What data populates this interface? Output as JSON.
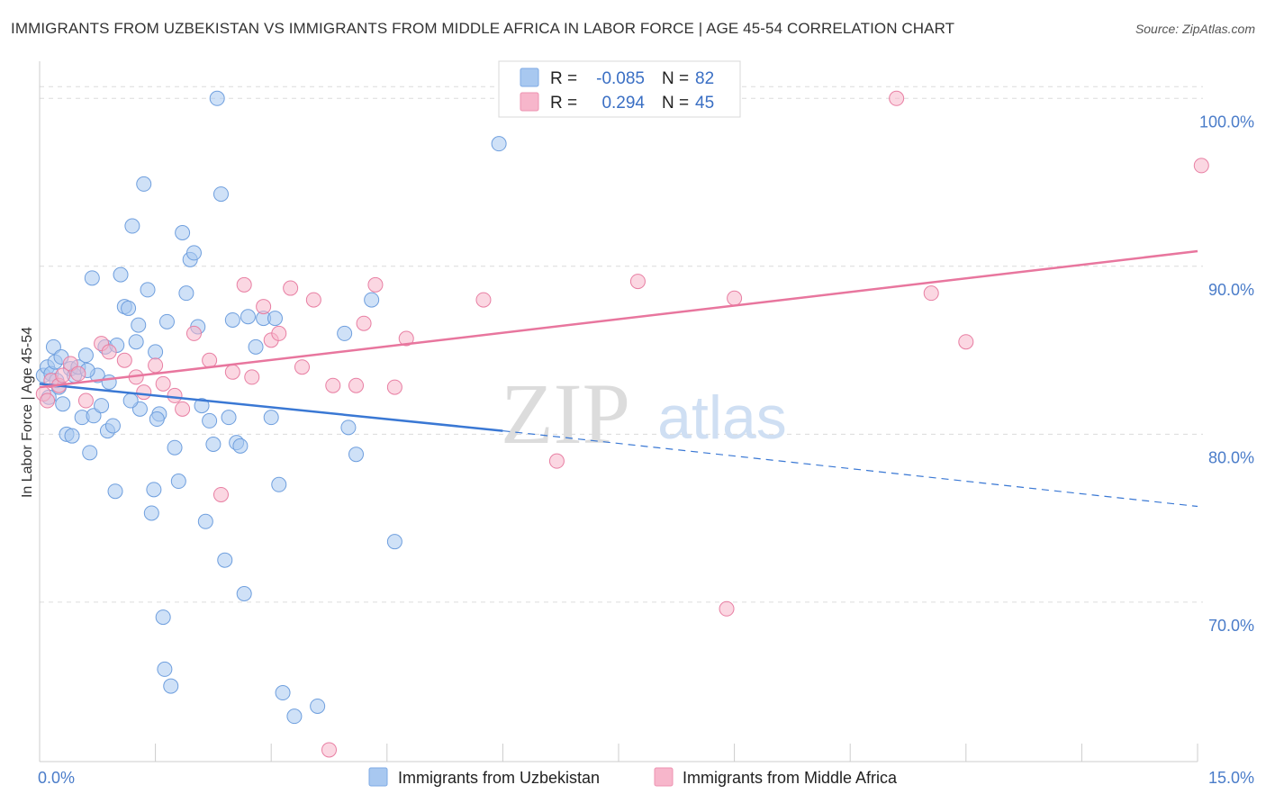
{
  "title": "IMMIGRANTS FROM UZBEKISTAN VS IMMIGRANTS FROM MIDDLE AFRICA IN LABOR FORCE | AGE 45-54 CORRELATION CHART",
  "source": "Source: ZipAtlas.com",
  "watermark": {
    "zip": "ZIP",
    "atlas": "atlas"
  },
  "legend": {
    "rows": [
      {
        "r_label": "R =",
        "r_value": "-0.085",
        "n_label": "N =",
        "n_value": "82",
        "color": "#a8c8f0"
      },
      {
        "r_label": "R =",
        "r_value": "0.294",
        "n_label": "N =",
        "n_value": "45",
        "color": "#f7b6cb"
      }
    ]
  },
  "chart_data": {
    "type": "scatter",
    "title": "IMMIGRANTS FROM UZBEKISTAN VS IMMIGRANTS FROM MIDDLE AFRICA IN LABOR FORCE | AGE 45-54 CORRELATION CHART",
    "xlabel": "",
    "ylabel": "In Labor Force | Age 45-54",
    "xlim": [
      0,
      15
    ],
    "ylim": [
      60.5,
      102
    ],
    "x_tick_labels": [
      "0.0%",
      "15.0%"
    ],
    "y_ticks": [
      70,
      80,
      90,
      100
    ],
    "y_tick_labels": [
      "70.0%",
      "80.0%",
      "90.0%",
      "100.0%"
    ],
    "grid": true,
    "legend_position": "top-center",
    "series": [
      {
        "name": "Immigrants from Uzbekistan",
        "color": "#a8c8f0",
        "stroke": "#6f9fde",
        "points": [
          [
            0.05,
            83.5
          ],
          [
            0.1,
            84.0
          ],
          [
            0.12,
            82.2
          ],
          [
            0.15,
            83.6
          ],
          [
            0.18,
            85.2
          ],
          [
            0.2,
            84.3
          ],
          [
            0.25,
            82.8
          ],
          [
            0.28,
            84.6
          ],
          [
            0.3,
            81.8
          ],
          [
            0.35,
            80.0
          ],
          [
            0.4,
            83.9
          ],
          [
            0.45,
            83.5
          ],
          [
            0.5,
            84.0
          ],
          [
            0.55,
            81.0
          ],
          [
            0.6,
            84.7
          ],
          [
            0.65,
            78.9
          ],
          [
            0.68,
            89.3
          ],
          [
            0.7,
            81.1
          ],
          [
            0.75,
            83.5
          ],
          [
            0.8,
            81.7
          ],
          [
            0.85,
            85.2
          ],
          [
            0.88,
            80.2
          ],
          [
            0.9,
            83.1
          ],
          [
            0.95,
            80.5
          ],
          [
            0.98,
            76.6
          ],
          [
            1.0,
            85.3
          ],
          [
            1.05,
            89.5
          ],
          [
            1.1,
            87.6
          ],
          [
            1.15,
            87.5
          ],
          [
            1.2,
            92.4
          ],
          [
            1.25,
            85.5
          ],
          [
            1.28,
            86.5
          ],
          [
            1.3,
            81.5
          ],
          [
            1.35,
            94.9
          ],
          [
            1.4,
            88.6
          ],
          [
            1.45,
            75.3
          ],
          [
            1.48,
            76.7
          ],
          [
            1.5,
            84.9
          ],
          [
            1.55,
            81.2
          ],
          [
            1.6,
            69.1
          ],
          [
            1.62,
            66.0
          ],
          [
            1.65,
            86.7
          ],
          [
            1.7,
            65.0
          ],
          [
            1.75,
            79.2
          ],
          [
            1.8,
            77.2
          ],
          [
            1.85,
            92.0
          ],
          [
            1.9,
            88.4
          ],
          [
            1.95,
            90.4
          ],
          [
            2.0,
            90.8
          ],
          [
            2.05,
            86.4
          ],
          [
            2.1,
            81.7
          ],
          [
            2.15,
            74.8
          ],
          [
            2.2,
            80.8
          ],
          [
            2.3,
            100.0
          ],
          [
            2.35,
            94.3
          ],
          [
            2.4,
            72.5
          ],
          [
            2.45,
            81.0
          ],
          [
            2.5,
            86.8
          ],
          [
            2.55,
            79.5
          ],
          [
            2.6,
            79.3
          ],
          [
            2.65,
            70.5
          ],
          [
            2.7,
            87.0
          ],
          [
            2.8,
            85.2
          ],
          [
            2.9,
            86.9
          ],
          [
            3.05,
            86.9
          ],
          [
            3.1,
            77.0
          ],
          [
            3.15,
            64.6
          ],
          [
            3.3,
            63.2
          ],
          [
            3.6,
            63.8
          ],
          [
            3.0,
            81.0
          ],
          [
            4.0,
            80.4
          ],
          [
            4.1,
            78.8
          ],
          [
            4.3,
            88.0
          ],
          [
            4.6,
            73.6
          ],
          [
            5.95,
            97.3
          ],
          [
            3.95,
            86.0
          ],
          [
            1.18,
            82.0
          ],
          [
            0.22,
            83.2
          ],
          [
            0.42,
            79.9
          ],
          [
            1.52,
            80.9
          ],
          [
            0.62,
            83.8
          ],
          [
            2.25,
            79.4
          ]
        ]
      },
      {
        "name": "Immigrants from Middle Africa",
        "color": "#f7b6cb",
        "stroke": "#e87fa3",
        "points": [
          [
            0.05,
            82.4
          ],
          [
            0.1,
            82.0
          ],
          [
            0.15,
            83.2
          ],
          [
            0.25,
            82.9
          ],
          [
            0.3,
            83.5
          ],
          [
            0.4,
            84.2
          ],
          [
            0.5,
            83.6
          ],
          [
            0.6,
            82.0
          ],
          [
            0.8,
            85.4
          ],
          [
            0.9,
            84.9
          ],
          [
            1.1,
            84.4
          ],
          [
            1.25,
            83.4
          ],
          [
            1.35,
            82.5
          ],
          [
            1.5,
            84.1
          ],
          [
            1.6,
            83.0
          ],
          [
            1.75,
            82.3
          ],
          [
            1.85,
            81.5
          ],
          [
            2.0,
            86.0
          ],
          [
            2.2,
            84.4
          ],
          [
            2.35,
            76.4
          ],
          [
            2.5,
            83.7
          ],
          [
            2.65,
            88.9
          ],
          [
            2.75,
            83.4
          ],
          [
            2.9,
            87.6
          ],
          [
            3.0,
            85.6
          ],
          [
            3.1,
            86.0
          ],
          [
            3.25,
            88.7
          ],
          [
            3.4,
            84.0
          ],
          [
            3.55,
            88.0
          ],
          [
            3.8,
            82.9
          ],
          [
            4.1,
            82.9
          ],
          [
            4.2,
            86.6
          ],
          [
            4.35,
            88.9
          ],
          [
            4.6,
            82.8
          ],
          [
            4.75,
            85.7
          ],
          [
            5.75,
            88.0
          ],
          [
            6.7,
            78.4
          ],
          [
            7.75,
            89.1
          ],
          [
            8.9,
            69.6
          ],
          [
            9.0,
            88.1
          ],
          [
            11.1,
            100.0
          ],
          [
            11.55,
            88.4
          ],
          [
            12.0,
            85.5
          ],
          [
            15.05,
            96.0
          ],
          [
            3.75,
            61.2
          ]
        ]
      }
    ],
    "trendlines": [
      {
        "series": "Immigrants from Uzbekistan",
        "color": "#3a78d4",
        "from": [
          0,
          83.0
        ],
        "to_solid": [
          6.0,
          80.2
        ],
        "to_dashed": [
          15.0,
          75.7
        ]
      },
      {
        "series": "Immigrants from Middle Africa",
        "color": "#e8769e",
        "from": [
          0,
          82.8
        ],
        "to": [
          15.0,
          90.9
        ]
      }
    ]
  },
  "bottom_legend": [
    {
      "label": "Immigrants from Uzbekistan",
      "color": "#a8c8f0"
    },
    {
      "label": "Immigrants from Middle Africa",
      "color": "#f7b6cb"
    }
  ]
}
